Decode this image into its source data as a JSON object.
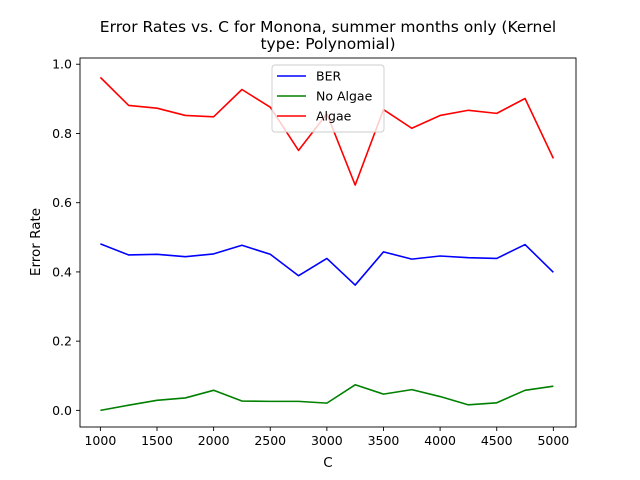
{
  "chart_data": {
    "type": "line",
    "title": "Error Rates vs. C for Monona, summer months only (Kernel type: Polynomial)",
    "title_lines": [
      "Error Rates vs. C for Monona, summer months only (Kernel",
      "type: Polynomial)"
    ],
    "xlabel": "C",
    "ylabel": "Error Rate",
    "x": [
      1000,
      1250,
      1500,
      1750,
      2000,
      2250,
      2500,
      2750,
      3000,
      3250,
      3500,
      3750,
      4000,
      4250,
      4500,
      4750,
      5000
    ],
    "xlim": [
      820,
      5200
    ],
    "ylim": [
      -0.048,
      1.018
    ],
    "xticks": [
      1000,
      1500,
      2000,
      2500,
      3000,
      3500,
      4000,
      4500,
      5000
    ],
    "xtick_labels": [
      "1000",
      "1500",
      "2000",
      "2500",
      "3000",
      "3500",
      "4000",
      "4500",
      "5000"
    ],
    "yticks": [
      0.0,
      0.2,
      0.4,
      0.6,
      0.8,
      1.0
    ],
    "ytick_labels": [
      "0.0",
      "0.2",
      "0.4",
      "0.6",
      "0.8",
      "1.0"
    ],
    "grid": false,
    "legend_position": "upper center",
    "series": [
      {
        "name": "BER",
        "color": "#0000ff",
        "values": [
          0.481,
          0.449,
          0.451,
          0.444,
          0.452,
          0.477,
          0.451,
          0.389,
          0.439,
          0.362,
          0.458,
          0.437,
          0.446,
          0.441,
          0.439,
          0.479,
          0.399
        ]
      },
      {
        "name": "No Algae",
        "color": "#008000",
        "values": [
          0.0,
          0.015,
          0.029,
          0.036,
          0.058,
          0.027,
          0.026,
          0.026,
          0.021,
          0.074,
          0.047,
          0.06,
          0.04,
          0.016,
          0.022,
          0.058,
          0.07
        ]
      },
      {
        "name": "Algae",
        "color": "#ff0000",
        "values": [
          0.962,
          0.881,
          0.873,
          0.852,
          0.848,
          0.927,
          0.876,
          0.751,
          0.857,
          0.651,
          0.869,
          0.815,
          0.852,
          0.867,
          0.858,
          0.901,
          0.728
        ]
      }
    ]
  }
}
